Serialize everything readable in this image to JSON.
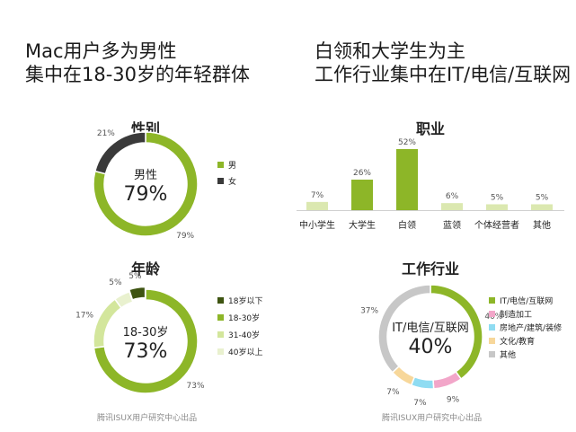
{
  "headline_left": {
    "line1": "Mac用户多为男性",
    "line2": "集中在18-30岁的年轻群体"
  },
  "headline_right": {
    "line1": "白领和大学生为主",
    "line2": "工作行业集中在IT/电信/互联网"
  },
  "credit": "腾讯ISUX用户研究中心出品",
  "chart_data": [
    {
      "type": "pie",
      "title": "性别",
      "center_label": "男性",
      "center_value": "79%",
      "legend_position": "right",
      "slices": [
        {
          "name": "男",
          "value": 79,
          "label": "79%",
          "color": "#8db628"
        },
        {
          "name": "女",
          "value": 21,
          "label": "21%",
          "color": "#3a3a3a"
        }
      ]
    },
    {
      "type": "bar",
      "title": "职业",
      "categories": [
        "中小学生",
        "大学生",
        "白领",
        "蓝领",
        "个体经营者",
        "其他"
      ],
      "values": [
        7,
        26,
        52,
        6,
        5,
        5
      ],
      "labels": [
        "7%",
        "26%",
        "52%",
        "6%",
        "5%",
        "5%"
      ],
      "colors": [
        "#dbe8b0",
        "#8db628",
        "#8db628",
        "#dbe8b0",
        "#dbe8b0",
        "#dbe8b0"
      ],
      "ylim": [
        0,
        52
      ]
    },
    {
      "type": "pie",
      "title": "年龄",
      "center_label": "18-30岁",
      "center_value": "73%",
      "legend_position": "right",
      "slices": [
        {
          "name": "18岁以下",
          "value": 5,
          "label": "5%",
          "color": "#3e5411"
        },
        {
          "name": "18-30岁",
          "value": 73,
          "label": "73%",
          "color": "#8db628"
        },
        {
          "name": "31-40岁",
          "value": 17,
          "label": "17%",
          "color": "#d3e69c"
        },
        {
          "name": "40岁以上",
          "value": 5,
          "label": "5%",
          "color": "#e9f1cf"
        }
      ]
    },
    {
      "type": "pie",
      "title": "工作行业",
      "center_label": "IT/电信/互联网",
      "center_value": "40%",
      "legend_position": "right",
      "slices": [
        {
          "name": "IT/电信/互联网",
          "value": 40,
          "label": "40%",
          "color": "#8db628"
        },
        {
          "name": "制造加工",
          "value": 9,
          "label": "9%",
          "color": "#f2a6c9"
        },
        {
          "name": "房地产/建筑/装修",
          "value": 7,
          "label": "7%",
          "color": "#8fdcf2"
        },
        {
          "name": "文化/教育",
          "value": 7,
          "label": "7%",
          "color": "#f7d79a"
        },
        {
          "name": "其他",
          "value": 37,
          "label": "37%",
          "color": "#c7c7c7"
        }
      ]
    }
  ]
}
